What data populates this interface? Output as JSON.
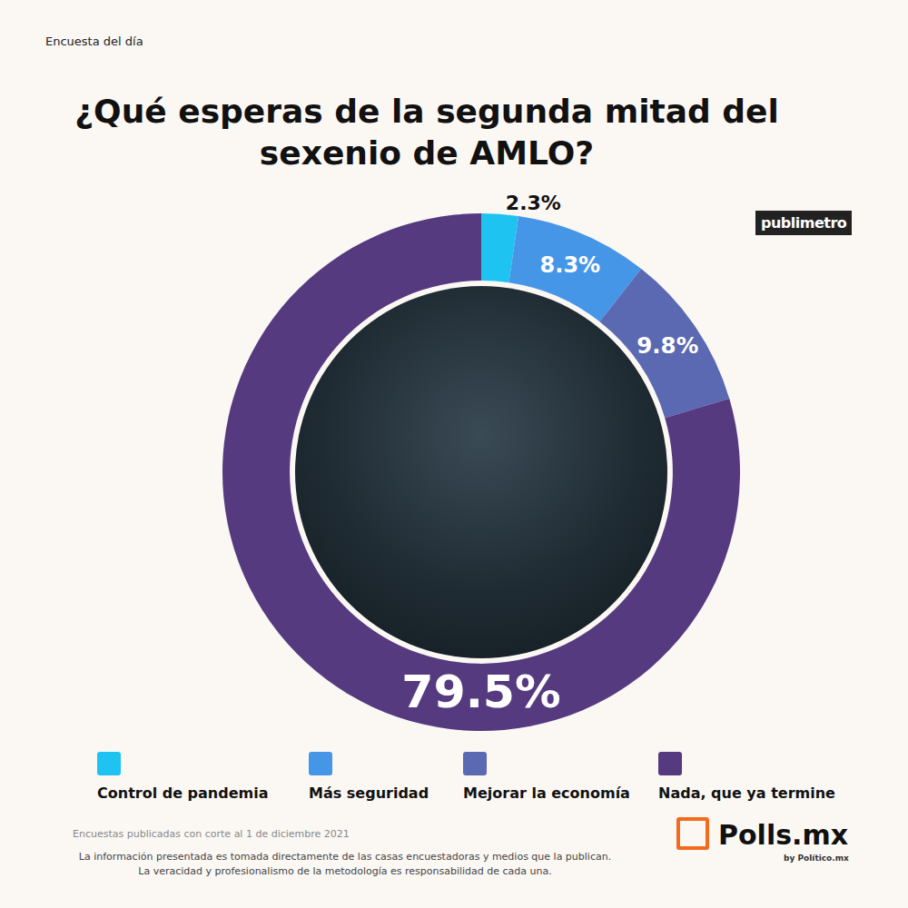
{
  "header": "Encuesta del día",
  "source": "publimetro",
  "chart_data": {
    "type": "pie",
    "title": "¿Qué esperas de la segunda mitad del sexenio de AMLO?",
    "categories": [
      "Control de pandemia",
      "Más seguridad",
      "Mejorar la economía",
      "Nada, que ya termine"
    ],
    "values": [
      2.3,
      8.3,
      9.8,
      79.5
    ],
    "value_labels": [
      "2.3%",
      "8.3%",
      "9.8%",
      "79.5%"
    ],
    "colors": [
      "#1fc3f2",
      "#4696e8",
      "#5b68b2",
      "#553a80"
    ],
    "data_labels": true,
    "legend": "bottom"
  },
  "footer": [
    "Encuestas publicadas con corte al 1 de diciembre 2021",
    "La información presentada es tomada directamente de las casas encuestadoras y medios que la publican.",
    "La veracidad y profesionalismo de la metodología es responsabilidad de cada una."
  ],
  "brand": {
    "name": "Polls.mx",
    "by": "by Político.mx"
  }
}
